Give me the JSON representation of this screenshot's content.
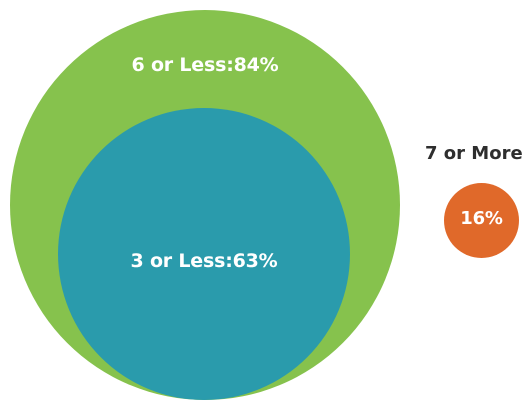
{
  "groups": {
    "six_or_less": {
      "label": "6 or Less:84%",
      "color": "#86c24d"
    },
    "three_or_less": {
      "label": "3 or Less:63%",
      "color": "#2a9bac"
    },
    "seven_or_more": {
      "title": "7 or More",
      "value": "16%",
      "color": "#e0692a"
    }
  }
}
